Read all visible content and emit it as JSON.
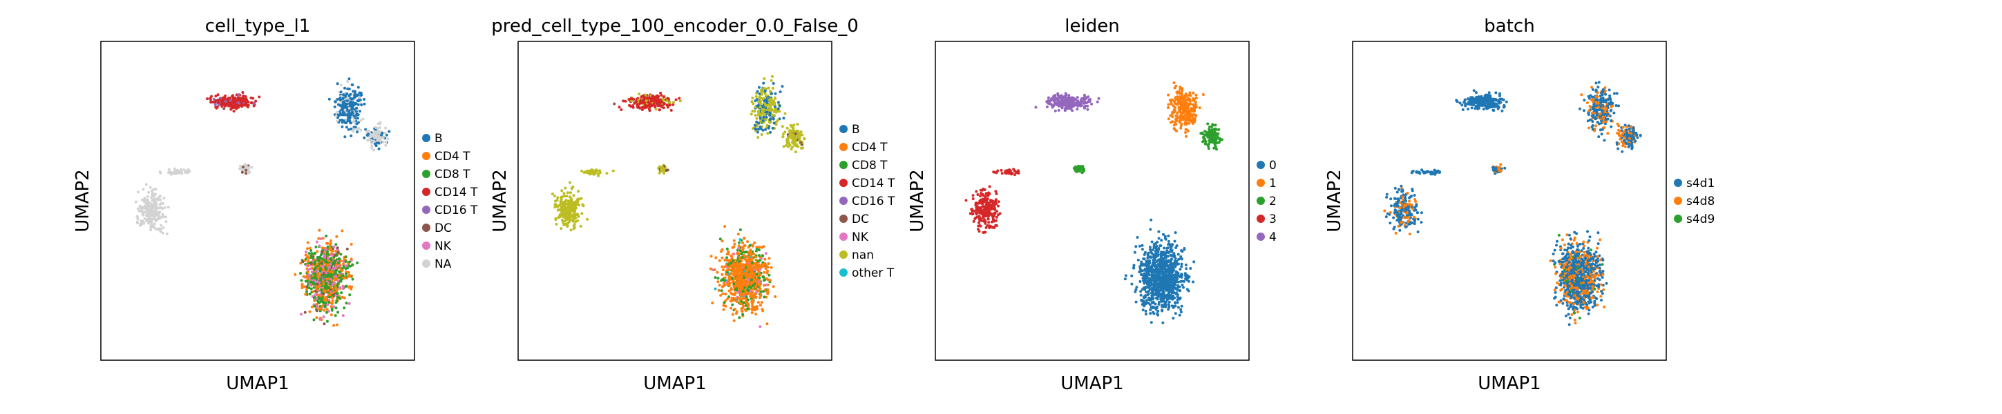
{
  "chart_data": [
    {
      "type": "scatter",
      "title": "cell_type_l1",
      "xlabel": "UMAP1",
      "ylabel": "UMAP2",
      "grid": false,
      "legend_placement": "right",
      "series": [
        {
          "name": "B",
          "color": "#1f77b4"
        },
        {
          "name": "CD4 T",
          "color": "#ff7f0e"
        },
        {
          "name": "CD8 T",
          "color": "#2ca02c"
        },
        {
          "name": "CD14 T",
          "color": "#d62728"
        },
        {
          "name": "CD16 T",
          "color": "#9467bd"
        },
        {
          "name": "DC",
          "color": "#8c564b"
        },
        {
          "name": "NK",
          "color": "#e377c2"
        },
        {
          "name": "NA",
          "color": "#d3d3d3"
        }
      ]
    },
    {
      "type": "scatter",
      "title": "pred_cell_type_100_encoder_0.0_False_0",
      "xlabel": "UMAP1",
      "ylabel": "UMAP2",
      "grid": false,
      "legend_placement": "right",
      "series": [
        {
          "name": "B",
          "color": "#1f77b4"
        },
        {
          "name": "CD4 T",
          "color": "#ff7f0e"
        },
        {
          "name": "CD8 T",
          "color": "#2ca02c"
        },
        {
          "name": "CD14 T",
          "color": "#d62728"
        },
        {
          "name": "CD16 T",
          "color": "#9467bd"
        },
        {
          "name": "DC",
          "color": "#8c564b"
        },
        {
          "name": "NK",
          "color": "#e377c2"
        },
        {
          "name": "nan",
          "color": "#bcbd22"
        },
        {
          "name": "other T",
          "color": "#17becf"
        }
      ]
    },
    {
      "type": "scatter",
      "title": "leiden",
      "xlabel": "UMAP1",
      "ylabel": "UMAP2",
      "grid": false,
      "legend_placement": "right",
      "series": [
        {
          "name": "0",
          "color": "#1f77b4"
        },
        {
          "name": "1",
          "color": "#ff7f0e"
        },
        {
          "name": "2",
          "color": "#2ca02c"
        },
        {
          "name": "3",
          "color": "#d62728"
        },
        {
          "name": "4",
          "color": "#9467bd"
        }
      ]
    },
    {
      "type": "scatter",
      "title": "batch",
      "xlabel": "UMAP1",
      "ylabel": "UMAP2",
      "grid": false,
      "legend_placement": "right",
      "series": [
        {
          "name": "s4d1",
          "color": "#1f77b4"
        },
        {
          "name": "s4d8",
          "color": "#ff7f0e"
        },
        {
          "name": "s4d9",
          "color": "#2ca02c"
        }
      ]
    }
  ]
}
